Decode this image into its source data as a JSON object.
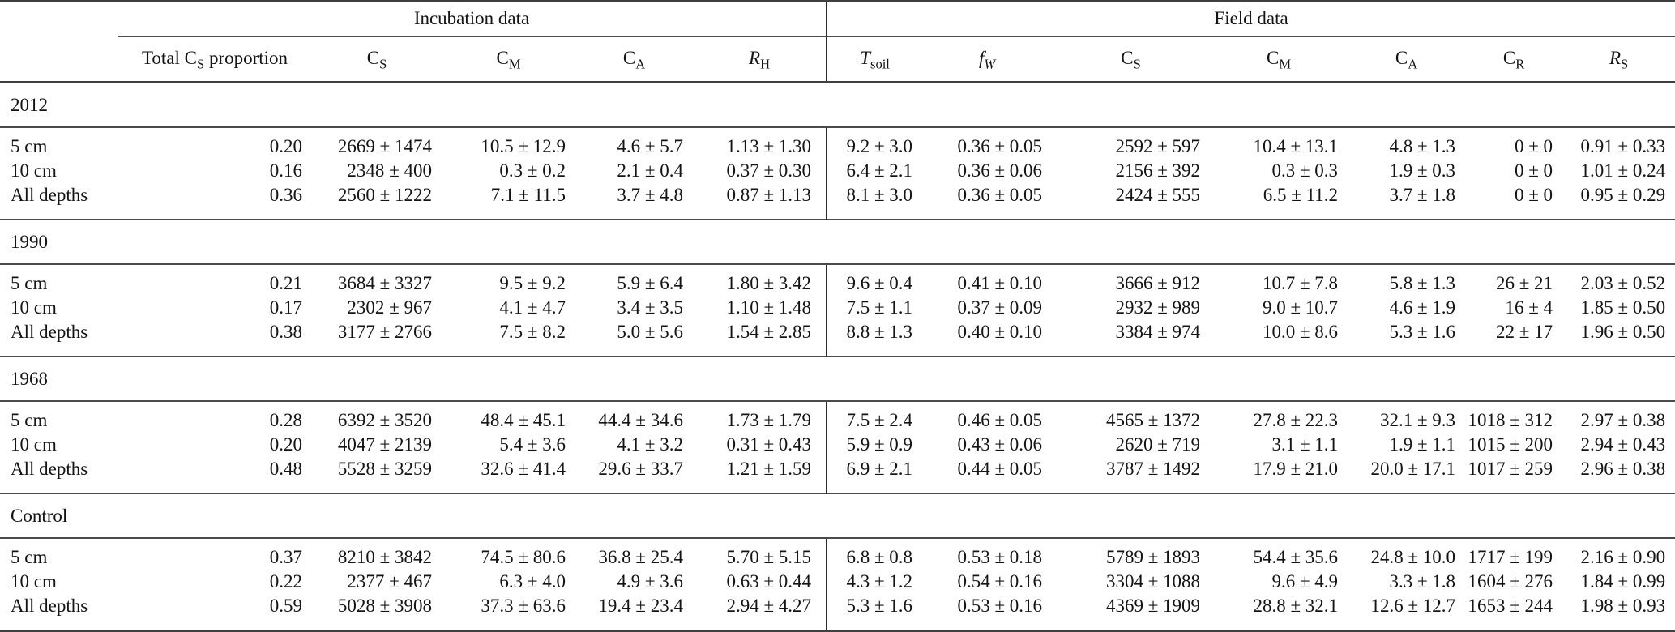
{
  "table": {
    "span_headers": [
      {
        "label": "Incubation data"
      },
      {
        "label": "Field data"
      }
    ],
    "columns": [
      {
        "pre": "Total C",
        "sub": "S",
        "post": " proportion"
      },
      {
        "pre": "C",
        "sub": "S",
        "post": ""
      },
      {
        "pre": "C",
        "sub": "M",
        "post": ""
      },
      {
        "pre": "C",
        "sub": "A",
        "post": ""
      },
      {
        "pre": "R",
        "sub": "H",
        "post": ""
      },
      {
        "pre": "T",
        "sub": "soil",
        "post": ""
      },
      {
        "pre": "f",
        "sub": "W",
        "post": ""
      },
      {
        "pre": "C",
        "sub": "S",
        "post": ""
      },
      {
        "pre": "C",
        "sub": "M",
        "post": ""
      },
      {
        "pre": "C",
        "sub": "A",
        "post": ""
      },
      {
        "pre": "C",
        "sub": "R",
        "post": ""
      },
      {
        "pre": "R",
        "sub": "S",
        "post": ""
      }
    ],
    "groups": [
      {
        "label": "2012",
        "rows": [
          {
            "label": "5 cm",
            "cells": [
              "0.20",
              "2669 ± 1474",
              "10.5 ± 12.9",
              "4.6 ± 5.7",
              "1.13 ± 1.30",
              "9.2 ± 3.0",
              "0.36 ± 0.05",
              "2592 ± 597",
              "10.4 ± 13.1",
              "4.8 ± 1.3",
              "0 ± 0",
              "0.91 ± 0.33"
            ]
          },
          {
            "label": "10 cm",
            "cells": [
              "0.16",
              "2348 ± 400",
              "0.3 ± 0.2",
              "2.1 ± 0.4",
              "0.37 ± 0.30",
              "6.4 ± 2.1",
              "0.36 ± 0.06",
              "2156 ± 392",
              "0.3 ± 0.3",
              "1.9 ± 0.3",
              "0 ± 0",
              "1.01 ± 0.24"
            ]
          },
          {
            "label": "All depths",
            "cells": [
              "0.36",
              "2560 ± 1222",
              "7.1 ± 11.5",
              "3.7 ± 4.8",
              "0.87 ± 1.13",
              "8.1 ± 3.0",
              "0.36 ± 0.05",
              "2424 ± 555",
              "6.5 ± 11.2",
              "3.7 ± 1.8",
              "0 ± 0",
              "0.95 ± 0.29"
            ]
          }
        ]
      },
      {
        "label": "1990",
        "rows": [
          {
            "label": "5 cm",
            "cells": [
              "0.21",
              "3684 ± 3327",
              "9.5 ± 9.2",
              "5.9 ± 6.4",
              "1.80 ± 3.42",
              "9.6 ± 0.4",
              "0.41 ± 0.10",
              "3666 ± 912",
              "10.7 ± 7.8",
              "5.8 ± 1.3",
              "26 ± 21",
              "2.03 ± 0.52"
            ]
          },
          {
            "label": "10 cm",
            "cells": [
              "0.17",
              "2302 ± 967",
              "4.1 ± 4.7",
              "3.4 ± 3.5",
              "1.10 ± 1.48",
              "7.5 ± 1.1",
              "0.37 ± 0.09",
              "2932 ± 989",
              "9.0 ± 10.7",
              "4.6 ± 1.9",
              "16 ± 4",
              "1.85 ± 0.50"
            ]
          },
          {
            "label": "All depths",
            "cells": [
              "0.38",
              "3177 ± 2766",
              "7.5 ± 8.2",
              "5.0 ± 5.6",
              "1.54 ± 2.85",
              "8.8 ± 1.3",
              "0.40 ± 0.10",
              "3384 ± 974",
              "10.0 ± 8.6",
              "5.3 ± 1.6",
              "22 ± 17",
              "1.96 ± 0.50"
            ]
          }
        ]
      },
      {
        "label": "1968",
        "rows": [
          {
            "label": "5 cm",
            "cells": [
              "0.28",
              "6392 ± 3520",
              "48.4 ± 45.1",
              "44.4 ± 34.6",
              "1.73 ± 1.79",
              "7.5 ± 2.4",
              "0.46 ± 0.05",
              "4565 ± 1372",
              "27.8 ± 22.3",
              "32.1 ± 9.3",
              "1018 ± 312",
              "2.97 ± 0.38"
            ]
          },
          {
            "label": "10 cm",
            "cells": [
              "0.20",
              "4047 ± 2139",
              "5.4 ± 3.6",
              "4.1 ± 3.2",
              "0.31 ± 0.43",
              "5.9 ± 0.9",
              "0.43 ± 0.06",
              "2620 ± 719",
              "3.1 ± 1.1",
              "1.9 ± 1.1",
              "1015 ± 200",
              "2.94 ± 0.43"
            ]
          },
          {
            "label": "All depths",
            "cells": [
              "0.48",
              "5528 ± 3259",
              "32.6 ± 41.4",
              "29.6 ± 33.7",
              "1.21 ± 1.59",
              "6.9 ± 2.1",
              "0.44 ± 0.05",
              "3787 ± 1492",
              "17.9 ± 21.0",
              "20.0 ± 17.1",
              "1017 ± 259",
              "2.96 ± 0.38"
            ]
          }
        ]
      },
      {
        "label": "Control",
        "rows": [
          {
            "label": "5 cm",
            "cells": [
              "0.37",
              "8210 ± 3842",
              "74.5 ± 80.6",
              "36.8 ± 25.4",
              "5.70 ± 5.15",
              "6.8 ± 0.8",
              "0.53 ± 0.18",
              "5789 ± 1893",
              "54.4 ± 35.6",
              "24.8 ± 10.0",
              "1717 ± 199",
              "2.16 ± 0.90"
            ]
          },
          {
            "label": "10 cm",
            "cells": [
              "0.22",
              "2377 ± 467",
              "6.3 ± 4.0",
              "4.9 ± 3.6",
              "0.63 ± 0.44",
              "4.3 ± 1.2",
              "0.54 ± 0.16",
              "3304 ± 1088",
              "9.6 ± 4.9",
              "3.3 ± 1.8",
              "1604 ± 276",
              "1.84 ± 0.99"
            ]
          },
          {
            "label": "All depths",
            "cells": [
              "0.59",
              "5028 ± 3908",
              "37.3 ± 63.6",
              "19.4 ± 23.4",
              "2.94 ± 4.27",
              "5.3 ± 1.6",
              "0.53 ± 0.16",
              "4369 ± 1909",
              "28.8 ± 32.1",
              "12.6 ± 12.7",
              "1653 ± 244",
              "1.98 ± 0.93"
            ]
          }
        ]
      }
    ]
  }
}
